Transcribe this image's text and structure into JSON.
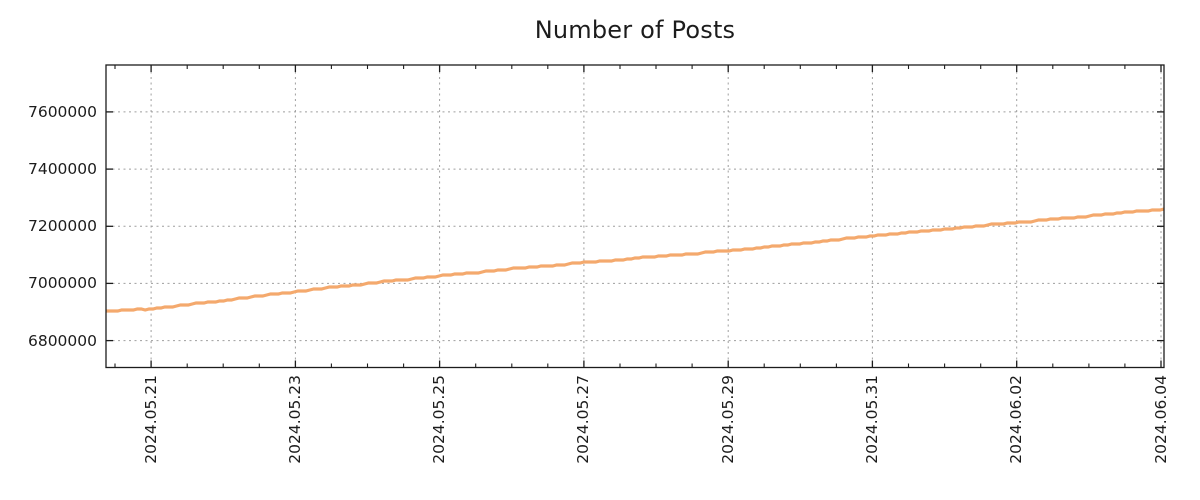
{
  "page": {
    "title": "Number of Posts"
  },
  "chart_data": {
    "type": "line",
    "title": "Number of Posts",
    "legend": "none",
    "grid": {
      "style": "dashed",
      "color": "#9e9e9e"
    },
    "axis_color": "#1c1c1c",
    "background": "#ffffff",
    "x_range": [
      "2024-05-20T09:00:00",
      "2024-06-04T01:00:00"
    ],
    "y_range": [
      6706000,
      7764000
    ],
    "minor_x_tick_hours": 12,
    "x_ticks": [
      {
        "t": "2024-05-21T00:00:00",
        "label": "2024.05.21"
      },
      {
        "t": "2024-05-23T00:00:00",
        "label": "2024.05.23"
      },
      {
        "t": "2024-05-25T00:00:00",
        "label": "2024.05.25"
      },
      {
        "t": "2024-05-27T00:00:00",
        "label": "2024.05.27"
      },
      {
        "t": "2024-05-29T00:00:00",
        "label": "2024.05.29"
      },
      {
        "t": "2024-05-31T00:00:00",
        "label": "2024.05.31"
      },
      {
        "t": "2024-06-02T00:00:00",
        "label": "2024.06.02"
      },
      {
        "t": "2024-06-04T00:00:00",
        "label": "2024.06.04"
      }
    ],
    "y_ticks": [
      {
        "v": 6800000,
        "label": "6800000"
      },
      {
        "v": 7000000,
        "label": "7000000"
      },
      {
        "v": 7200000,
        "label": "7200000"
      },
      {
        "v": 7400000,
        "label": "7400000"
      },
      {
        "v": 7600000,
        "label": "7600000"
      }
    ],
    "series": [
      {
        "name": "Number of Posts",
        "color": "#f4a96d",
        "dates": [
          "2024-05-20T09:00:00",
          "2024-05-21T00:00:00",
          "2024-05-22T00:00:00",
          "2024-05-23T00:00:00",
          "2024-05-24T00:00:00",
          "2024-05-25T00:00:00",
          "2024-05-26T00:00:00",
          "2024-05-27T00:00:00",
          "2024-05-28T00:00:00",
          "2024-05-29T00:00:00",
          "2024-05-30T00:00:00",
          "2024-05-31T00:00:00",
          "2024-06-01T00:00:00",
          "2024-06-02T00:00:00",
          "2024-06-03T00:00:00",
          "2024-06-04T00:00:00"
        ],
        "values": [
          6903000,
          6911000,
          6940000,
          6972000,
          7000000,
          7026000,
          7051000,
          7073000,
          7094000,
          7114000,
          7139000,
          7166000,
          7190000,
          7213000,
          7236000,
          7259000
        ]
      }
    ]
  }
}
